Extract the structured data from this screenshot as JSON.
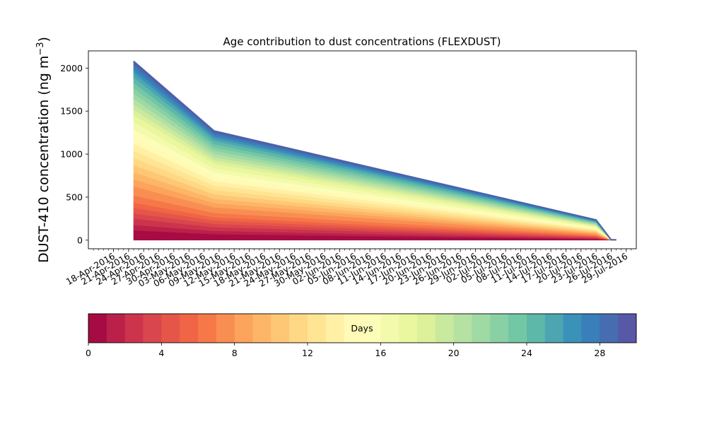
{
  "chart_data": {
    "type": "area",
    "title": "Age contribution to dust concentrations (FLEXDUST)",
    "ylabel": "DUST-410 concentration (ng m",
    "ylabel_sup": "−3",
    "ylabel_close": ")",
    "xlabel": "",
    "ylim": [
      -100,
      2200
    ],
    "yticks": [
      0,
      500,
      1000,
      1500,
      2000
    ],
    "xlim_days": [
      -5,
      104
    ],
    "x_tick_labels": [
      "18-Apr-2016",
      "21-Apr-2016",
      "24-Apr-2016",
      "27-Apr-2016",
      "30-Apr-2016",
      "03-May-2016",
      "06-May-2016",
      "09-May-2016",
      "12-May-2016",
      "15-May-2016",
      "18-May-2016",
      "21-May-2016",
      "24-May-2016",
      "27-May-2016",
      "30-May-2016",
      "02-Jun-2016",
      "05-Jun-2016",
      "08-Jun-2016",
      "11-Jun-2016",
      "14-Jun-2016",
      "17-Jun-2016",
      "20-Jun-2016",
      "23-Jun-2016",
      "26-Jun-2016",
      "29-Jun-2016",
      "02-Jul-2016",
      "05-Jul-2016",
      "08-Jul-2016",
      "11-Jul-2016",
      "14-Jul-2016",
      "17-Jul-2016",
      "20-Jul-2016",
      "23-Jul-2016",
      "26-Jul-2016",
      "29-Jul-2016"
    ],
    "x_tick_spacing_days": 3,
    "dates": [
      "22-Apr-2016",
      "08-May-2016",
      "23-Jul-2016",
      "26-Jul-2016",
      "27-Jul-2016"
    ],
    "total": [
      2080,
      1270,
      235,
      5,
      5
    ],
    "stack_fractions_by_age": [
      0,
      0.055,
      0.085,
      0.12,
      0.15,
      0.18,
      0.21,
      0.25,
      0.3,
      0.34,
      0.38,
      0.42,
      0.46,
      0.5,
      0.54,
      0.58,
      0.62,
      0.66,
      0.7,
      0.73,
      0.76,
      0.79,
      0.82,
      0.85,
      0.88,
      0.91,
      0.935,
      0.955,
      0.975,
      0.99,
      1.0
    ],
    "grid": false,
    "colorbar": {
      "label": "Days",
      "min": 0,
      "max": 30,
      "ticks": [
        0,
        4,
        8,
        12,
        16,
        20,
        24,
        28
      ],
      "colormap": "Spectral"
    }
  }
}
